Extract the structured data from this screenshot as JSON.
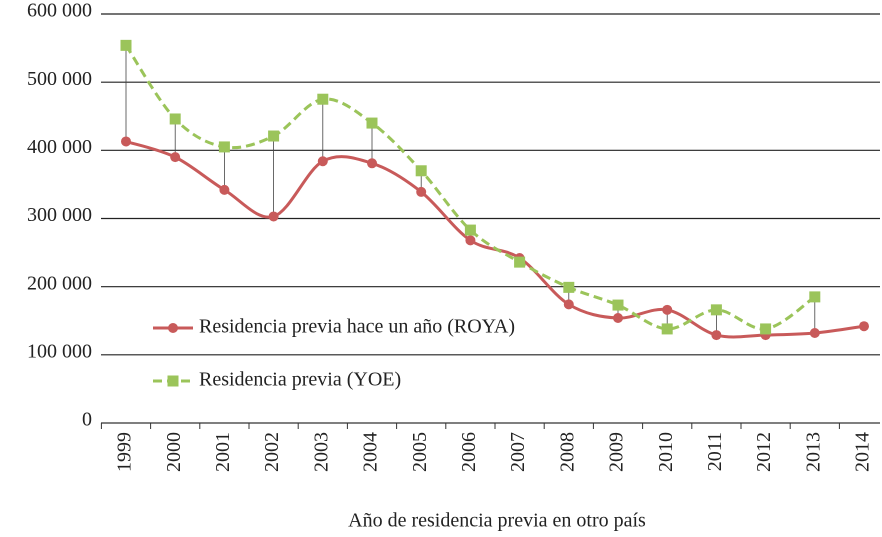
{
  "chart_data": {
    "type": "line",
    "xlabel": "Año de residencia previa en otro país",
    "categories": [
      "1999",
      "2000",
      "2001",
      "2002",
      "2003",
      "2004",
      "2005",
      "2006",
      "2007",
      "2008",
      "2009",
      "2010",
      "2011",
      "2012",
      "2013",
      "2014"
    ],
    "series": [
      {
        "name": "Residencia previa hace un año (ROYA)",
        "color": "#c85a5a",
        "marker": "circle",
        "dashed": false,
        "values": [
          413000,
          390000,
          342000,
          303000,
          384000,
          381000,
          339000,
          268000,
          242000,
          174000,
          154000,
          166000,
          129000,
          129000,
          132000,
          142000
        ]
      },
      {
        "name": "Residencia previa (YOE)",
        "color": "#9bc45a",
        "marker": "square",
        "dashed": true,
        "values": [
          554000,
          446000,
          405000,
          421000,
          475000,
          440000,
          370000,
          283000,
          236000,
          199000,
          173000,
          138000,
          166000,
          138000,
          185000,
          null
        ]
      }
    ],
    "ylim": [
      0,
      600000
    ],
    "yticks": [
      0,
      {
        "value": 100000,
        "label": "100 000"
      },
      {
        "value": 200000,
        "label": "200 000"
      },
      {
        "value": 300000,
        "label": "300 000"
      },
      {
        "value": 400000,
        "label": "400 000"
      },
      {
        "value": 500000,
        "label": "500 000"
      },
      {
        "value": 600000,
        "label": "600 000"
      }
    ],
    "grid": true,
    "legend": "lower left",
    "drop_lines": true
  }
}
